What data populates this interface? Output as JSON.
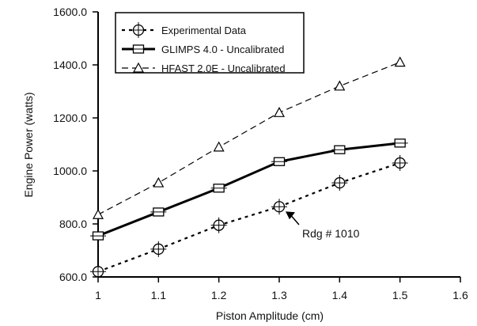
{
  "chart_data": {
    "type": "line",
    "title": "",
    "xlabel": "Piston Amplitude (cm)",
    "ylabel": "Engine Power (watts)",
    "xlim": [
      1,
      1.6
    ],
    "ylim": [
      600,
      1600
    ],
    "xticks": [
      1,
      1.1,
      1.2,
      1.3,
      1.4,
      1.5,
      1.6
    ],
    "xtick_labels": [
      "1",
      "1.1",
      "1.2",
      "1.3",
      "1.4",
      "1.5",
      "1.6"
    ],
    "yticks": [
      600,
      800,
      1000,
      1200,
      1400,
      1600
    ],
    "ytick_labels": [
      "600.0",
      "800.0",
      "1000.0",
      "1200.0",
      "1400.0",
      "1600.0"
    ],
    "grid": false,
    "legend_position": "top-left",
    "x": [
      1,
      1.1,
      1.2,
      1.3,
      1.4,
      1.5
    ],
    "series": [
      {
        "name": "Experimental Data",
        "line_style": "short-dash",
        "marker": "circle-cross",
        "values": [
          620,
          705,
          795,
          865,
          955,
          1030
        ]
      },
      {
        "name": "GLIMPS 4.0 - Uncalibrated",
        "line_style": "solid-thick",
        "marker": "square",
        "values": [
          755,
          845,
          935,
          1035,
          1080,
          1105
        ]
      },
      {
        "name": "HFAST 2.0E - Uncalibrated",
        "line_style": "long-dash",
        "marker": "triangle",
        "values": [
          835,
          955,
          1090,
          1220,
          1320,
          1410
        ]
      }
    ],
    "annotations": [
      {
        "text": "Rdg # 1010",
        "point_x": 1.3,
        "point_y": 865
      }
    ]
  }
}
